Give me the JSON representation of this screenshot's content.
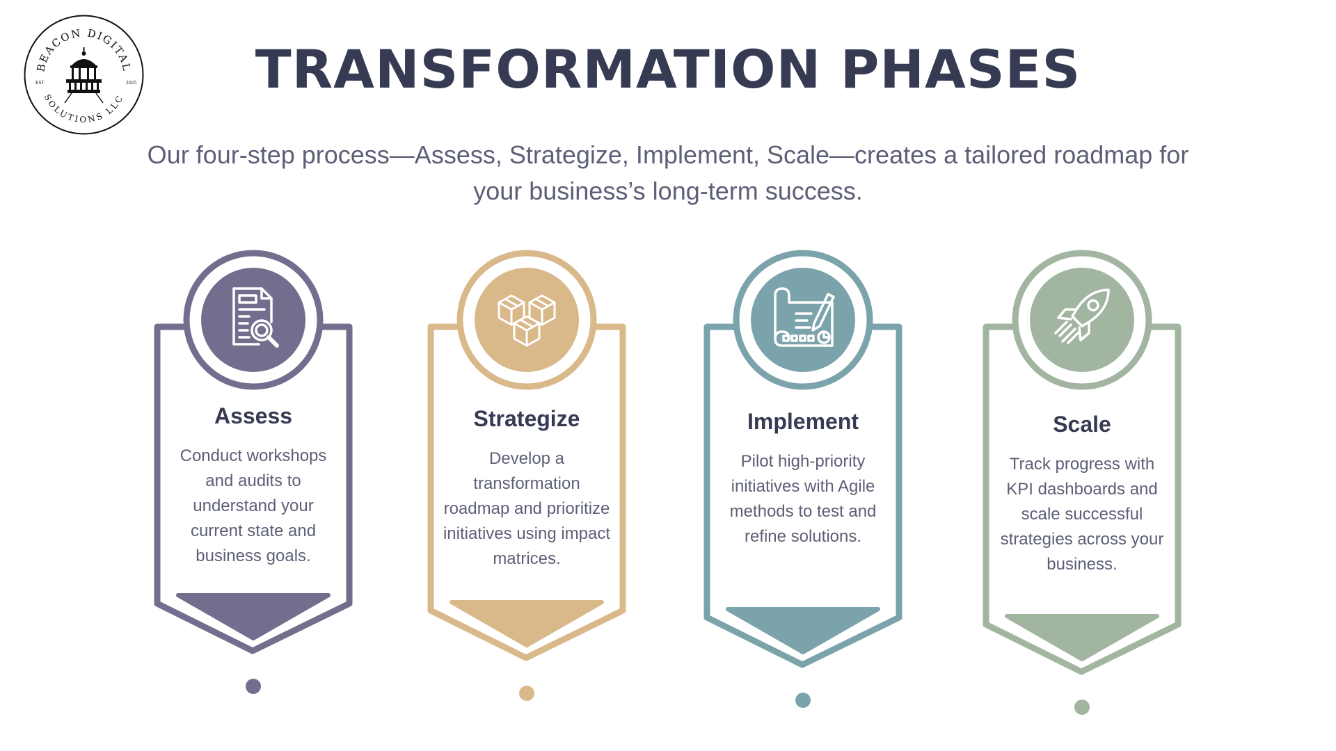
{
  "logo": {
    "icon": "lighthouse-logo-icon",
    "text_top": "BEACON DIGITAL",
    "text_bottom": "SOLUTIONS LLC",
    "est_left": "EST.",
    "est_right": "2025"
  },
  "title": "TRANSFORMATION PHASES",
  "subtitle": "Our four-step process—Assess, Strategize, Implement, Scale—creates a tailored roadmap for your business’s long-term success.",
  "colors": {
    "assess": "#716e8e",
    "strategize": "#d9b88a",
    "implement": "#7ba3ab",
    "scale": "#a2b5a0",
    "title": "#363a52",
    "text": "#5c5f76"
  },
  "phases": [
    {
      "id": "assess",
      "icon": "document-search-icon",
      "title": "Assess",
      "description": "Conduct workshops and audits to understand your current state and business goals."
    },
    {
      "id": "strategize",
      "icon": "boxes-icon",
      "title": "Strategize",
      "description": "Develop a transformation roadmap and prioritize initiatives using impact matrices."
    },
    {
      "id": "implement",
      "icon": "blueprint-pencil-icon",
      "title": "Implement",
      "description": "Pilot high-priority initiatives with Agile methods to test and refine solutions."
    },
    {
      "id": "scale",
      "icon": "rocket-icon",
      "title": "Scale",
      "description": "Track progress with KPI dashboards and scale successful strategies across your business."
    }
  ]
}
